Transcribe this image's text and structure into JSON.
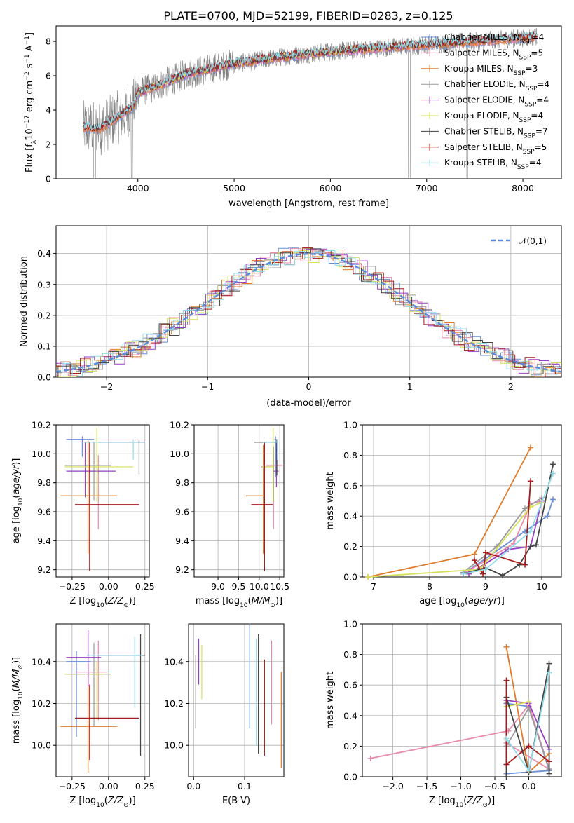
{
  "title": "PLATE=0700, MJD=52199, FIBERID=0283, z=0.125",
  "colors": {
    "Chabrier MILES": "#6b8fd6",
    "Salpeter MILES": "#e88aa8",
    "Kroupa MILES": "#e07b2a",
    "Chabrier ELODIE": "#9a9a9a",
    "Salpeter ELODIE": "#9a3fc5",
    "Kroupa ELODIE": "#d5e05a",
    "Chabrier STELIB": "#444444",
    "Salpeter STELIB": "#a61b1b",
    "Kroupa STELIB": "#8fdbe8"
  },
  "chart_data": [
    {
      "id": "spectrum",
      "type": "line",
      "xlabel": "wavelength [Angstrom, rest frame]",
      "ylabel": "Flux [f_λ 10^-17 erg cm^-2 s^-1 A^-1]",
      "xlim": [
        3150,
        8400
      ],
      "ylim": [
        0,
        8.9
      ],
      "xticks": [
        4000,
        5000,
        6000,
        7000,
        8000
      ],
      "yticks": [
        0,
        2,
        4,
        6,
        8
      ],
      "legend_position": "upper right",
      "legend": [
        "Chabrier MILES, N_SSP=4",
        "Salpeter MILES, N_SSP=5",
        "Kroupa MILES, N_SSP=3",
        "Chabrier ELODIE, N_SSP=4",
        "Salpeter ELODIE, N_SSP=4",
        "Kroupa ELODIE, N_SSP=4",
        "Chabrier STELIB, N_SSP=7",
        "Salpeter STELIB, N_SSP=5",
        "Kroupa STELIB, N_SSP=4"
      ],
      "continuum_x": [
        3430,
        3600,
        3800,
        3950,
        4000,
        4200,
        4500,
        5000,
        5500,
        6000,
        6500,
        7000,
        7500,
        8000,
        8150
      ],
      "continuum_y": [
        3.0,
        2.9,
        3.6,
        4.2,
        5.0,
        5.4,
        6.1,
        6.7,
        7.1,
        7.4,
        7.6,
        7.8,
        8.0,
        8.2,
        8.3
      ]
    },
    {
      "id": "residuals",
      "type": "line",
      "xlabel": "(data-model)/error",
      "ylabel": "Normed distribution",
      "xlim": [
        -2.5,
        2.5
      ],
      "ylim": [
        0,
        0.49
      ],
      "xticks": [
        -2,
        -1,
        0,
        1,
        2
      ],
      "yticks": [
        0.0,
        0.1,
        0.2,
        0.3,
        0.4
      ],
      "legend": "𝒩(0,1)",
      "legend_position": "upper right"
    },
    {
      "id": "age_vs_Z",
      "type": "scatter",
      "xlabel": "Z [log10(Z/Z☉)]",
      "ylabel": "age [log10(age/yr)]",
      "xlim": [
        -0.36,
        0.28
      ],
      "ylim": [
        9.15,
        10.2
      ],
      "xticks": [
        -0.25,
        0.0,
        0.25
      ],
      "yticks": [
        9.2,
        9.4,
        9.6,
        9.8,
        10.0,
        10.2
      ],
      "points": [
        {
          "model": "Chabrier MILES",
          "x": -0.18,
          "xerr": [
            0.11,
            0.08
          ],
          "y": 10.1,
          "yerr": [
            0.12,
            0.02
          ]
        },
        {
          "model": "Salpeter MILES",
          "x": -0.07,
          "xerr": [
            0.15,
            0.07
          ],
          "y": 9.92,
          "yerr": [
            0.44,
            0.07
          ]
        },
        {
          "model": "Kroupa MILES",
          "x": -0.14,
          "xerr": [
            0.19,
            0.2
          ],
          "y": 9.71,
          "yerr": [
            0.4,
            0.38
          ]
        },
        {
          "model": "Chabrier ELODIE",
          "x": -0.1,
          "xerr": [
            0.2,
            0.12
          ],
          "y": 9.92,
          "yerr": [
            0.24,
            0.16
          ]
        },
        {
          "model": "Salpeter ELODIE",
          "x": -0.16,
          "xerr": [
            0.13,
            0.21
          ],
          "y": 9.88,
          "yerr": [
            0.18,
            0.2
          ]
        },
        {
          "model": "Kroupa ELODIE",
          "x": -0.08,
          "xerr": [
            0.22,
            0.25
          ],
          "y": 9.91,
          "yerr": [
            0.24,
            0.27
          ]
        },
        {
          "model": "Chabrier STELIB",
          "x": 0.21,
          "xerr": [
            0.28,
            0.04
          ],
          "y": 10.08,
          "yerr": [
            0.22,
            0.02
          ]
        },
        {
          "model": "Salpeter STELIB",
          "x": -0.13,
          "xerr": [
            0.1,
            0.34
          ],
          "y": 9.65,
          "yerr": [
            0.46,
            0.43
          ]
        },
        {
          "model": "Kroupa STELIB",
          "x": 0.17,
          "xerr": [
            0.34,
            0.08
          ],
          "y": 10.08,
          "yerr": [
            0.12,
            0.02
          ]
        }
      ]
    },
    {
      "id": "age_vs_mass",
      "type": "scatter",
      "xlabel": "mass [log10(M/M☉)]",
      "ylabel": "",
      "xlim": [
        8.42,
        10.6
      ],
      "ylim": [
        9.15,
        10.2
      ],
      "xticks": [
        9.0,
        9.5,
        10.0,
        10.5
      ],
      "yticks": [
        9.2,
        9.4,
        9.6,
        9.8,
        10.0,
        10.2
      ],
      "points": [
        {
          "model": "Chabrier MILES",
          "x": 10.4,
          "xerr": [
            0.03,
            0.02
          ],
          "y": 10.1,
          "yerr": [
            0.26,
            0.02
          ]
        },
        {
          "model": "Salpeter MILES",
          "x": 10.35,
          "xerr": [
            0.18,
            0.22
          ],
          "y": 9.92,
          "yerr": [
            0.44,
            0.07
          ]
        },
        {
          "model": "Kroupa MILES",
          "x": 10.1,
          "xerr": [
            0.42,
            0.0
          ],
          "y": 9.71,
          "yerr": [
            0.4,
            0.35
          ]
        },
        {
          "model": "Chabrier ELODIE",
          "x": 10.35,
          "xerr": [
            0.3,
            0.0
          ],
          "y": 9.91,
          "yerr": [
            0.24,
            0.14
          ]
        },
        {
          "model": "Salpeter ELODIE",
          "x": 10.42,
          "xerr": [
            0.07,
            0.05
          ],
          "y": 9.88,
          "yerr": [
            0.11,
            0.2
          ]
        },
        {
          "model": "Kroupa ELODIE",
          "x": 10.34,
          "xerr": [
            0.25,
            0.0
          ],
          "y": 9.91,
          "yerr": [
            0.24,
            0.27
          ]
        },
        {
          "model": "Chabrier STELIB",
          "x": 10.43,
          "xerr": [
            0.55,
            0.0
          ],
          "y": 10.08,
          "yerr": [
            0.23,
            0.02
          ]
        },
        {
          "model": "Salpeter STELIB",
          "x": 10.13,
          "xerr": [
            0.32,
            0.2
          ],
          "y": 9.65,
          "yerr": [
            0.46,
            0.43
          ]
        },
        {
          "model": "Kroupa STELIB",
          "x": 10.44,
          "xerr": [
            0.34,
            0.03
          ],
          "y": 10.08,
          "yerr": [
            0.12,
            0.02
          ]
        }
      ]
    },
    {
      "id": "weight_vs_age",
      "type": "line",
      "xlabel": "age [log10(age/yr)]",
      "ylabel": "mass weight",
      "xlim": [
        6.8,
        10.35
      ],
      "ylim": [
        0,
        1.0
      ],
      "xticks": [
        7,
        8,
        9,
        10
      ],
      "yticks": [
        0.0,
        0.2,
        0.4,
        0.6,
        0.8,
        1.0
      ],
      "series": [
        {
          "model": "Chabrier MILES",
          "x": [
            8.6,
            9.7,
            10.1,
            10.2
          ],
          "y": [
            0.02,
            0.3,
            0.4,
            0.51
          ]
        },
        {
          "model": "Salpeter MILES",
          "x": [
            8.6,
            9.5,
            9.8,
            10.0
          ],
          "y": [
            0.02,
            0.22,
            0.48,
            0.5
          ]
        },
        {
          "model": "Kroupa MILES",
          "x": [
            6.9,
            8.8,
            9.8
          ],
          "y": [
            0.0,
            0.15,
            0.85
          ]
        },
        {
          "model": "Chabrier ELODIE",
          "x": [
            8.6,
            9.2,
            9.7,
            10.0
          ],
          "y": [
            0.03,
            0.2,
            0.45,
            0.52
          ]
        },
        {
          "model": "Salpeter ELODIE",
          "x": [
            8.7,
            9.4,
            9.8,
            10.0
          ],
          "y": [
            0.02,
            0.18,
            0.2,
            0.5
          ]
        },
        {
          "model": "Kroupa ELODIE",
          "x": [
            6.9,
            8.9,
            9.8,
            10.0
          ],
          "y": [
            0.0,
            0.05,
            0.46,
            0.49
          ]
        },
        {
          "model": "Chabrier STELIB",
          "x": [
            8.6,
            9.0,
            9.3,
            9.6,
            9.8,
            9.9,
            10.2
          ],
          "y": [
            0.02,
            0.06,
            0.01,
            0.08,
            0.2,
            0.21,
            0.74
          ]
        },
        {
          "model": "Salpeter STELIB",
          "x": [
            8.8,
            8.95,
            9.0,
            9.7,
            9.8
          ],
          "y": [
            0.11,
            0.02,
            0.16,
            0.08,
            0.63
          ]
        },
        {
          "model": "Kroupa STELIB",
          "x": [
            8.6,
            9.0,
            9.8,
            10.2
          ],
          "y": [
            0.02,
            0.05,
            0.3,
            0.68
          ]
        }
      ]
    },
    {
      "id": "mass_vs_Z",
      "type": "scatter",
      "xlabel": "Z [log10(Z/Z☉)]",
      "ylabel": "mass [log10(M/M☉)]",
      "xlim": [
        -0.36,
        0.28
      ],
      "ylim": [
        9.85,
        10.58
      ],
      "xticks": [
        -0.25,
        0.0,
        0.25
      ],
      "yticks": [
        10.0,
        10.2,
        10.4
      ],
      "points": [
        {
          "model": "Chabrier MILES",
          "x": -0.22,
          "xerr": [
            0.07,
            0.1
          ],
          "y": 10.4,
          "yerr": [
            0.36,
            0.05
          ]
        },
        {
          "model": "Salpeter MILES",
          "x": -0.07,
          "xerr": [
            0.15,
            0.06
          ],
          "y": 10.35,
          "yerr": [
            0.23,
            0.15
          ]
        },
        {
          "model": "Kroupa MILES",
          "x": -0.14,
          "xerr": [
            0.19,
            0.2
          ],
          "y": 10.09,
          "yerr": [
            0.22,
            0.3
          ]
        },
        {
          "model": "Chabrier ELODIE",
          "x": -0.1,
          "xerr": [
            0.2,
            0.12
          ],
          "y": 10.34,
          "yerr": [
            0.25,
            0.15
          ]
        },
        {
          "model": "Salpeter ELODIE",
          "x": -0.14,
          "xerr": [
            0.15,
            0.09
          ],
          "y": 10.42,
          "yerr": [
            0.14,
            0.13
          ]
        },
        {
          "model": "Kroupa ELODIE",
          "x": -0.08,
          "xerr": [
            0.22,
            0.05
          ],
          "y": 10.34,
          "yerr": [
            0.22,
            0.06
          ]
        },
        {
          "model": "Chabrier STELIB",
          "x": 0.22,
          "xerr": [
            0.3,
            0.03
          ],
          "y": 10.43,
          "yerr": [
            0.48,
            0.1
          ]
        },
        {
          "model": "Salpeter STELIB",
          "x": -0.13,
          "xerr": [
            0.1,
            0.34
          ],
          "y": 10.13,
          "yerr": [
            0.2,
            0.16
          ]
        },
        {
          "model": "Kroupa STELIB",
          "x": 0.18,
          "xerr": [
            0.33,
            0.05
          ],
          "y": 10.43,
          "yerr": [
            0.25,
            0.09
          ]
        }
      ]
    },
    {
      "id": "mass_vs_ebv",
      "type": "scatter",
      "xlabel": "E(B-V)",
      "ylabel": "",
      "xlim": [
        -0.01,
        0.177
      ],
      "ylim": [
        9.85,
        10.58
      ],
      "xticks": [
        0.0,
        0.1
      ],
      "yticks": [
        10.0,
        10.2,
        10.4
      ],
      "points": [
        {
          "model": "Chabrier MILES",
          "x": 0.11,
          "yerr": [
            0.32,
            0.22
          ],
          "y": 10.4
        },
        {
          "model": "Salpeter MILES",
          "x": 0.153,
          "yerr": [
            0.25,
            0.15
          ],
          "y": 10.35
        },
        {
          "model": "Kroupa MILES",
          "x": 0.172,
          "yerr": [
            0.2,
            0.26
          ],
          "y": 10.09
        },
        {
          "model": "Chabrier ELODIE",
          "x": 0.004,
          "yerr": [
            0.26,
            0.09
          ],
          "y": 10.34
        },
        {
          "model": "Salpeter ELODIE",
          "x": 0.01,
          "yerr": [
            0.13,
            0.09
          ],
          "y": 10.42
        },
        {
          "model": "Kroupa ELODIE",
          "x": 0.016,
          "yerr": [
            0.12,
            0.14
          ],
          "y": 10.34
        },
        {
          "model": "Chabrier STELIB",
          "x": 0.127,
          "yerr": [
            0.47,
            0.1
          ],
          "y": 10.43
        },
        {
          "model": "Salpeter STELIB",
          "x": 0.139,
          "yerr": [
            0.18,
            0.28
          ],
          "y": 10.13
        },
        {
          "model": "Kroupa STELIB",
          "x": 0.123,
          "yerr": [
            0.45,
            0.06
          ],
          "y": 10.45
        }
      ]
    },
    {
      "id": "weight_vs_Z",
      "type": "line",
      "xlabel": "Z [log10(Z/Z☉)]",
      "ylabel": "mass weight",
      "xlim": [
        -2.45,
        0.48
      ],
      "ylim": [
        0,
        1.0
      ],
      "xticks": [
        -2.0,
        -1.5,
        -1.0,
        -0.5,
        0.0
      ],
      "yticks": [
        0.0,
        0.2,
        0.4,
        0.6,
        0.8,
        1.0
      ],
      "series": [
        {
          "model": "Chabrier MILES",
          "x": [
            -0.33,
            0.0,
            0.3,
            -0.33
          ],
          "y": [
            0.48,
            0.46,
            0.04,
            0.02
          ]
        },
        {
          "model": "Salpeter MILES",
          "x": [
            -2.33,
            -0.3,
            0.0,
            0.3,
            -0.33
          ],
          "y": [
            0.12,
            0.3,
            0.47,
            0.05,
            0.22
          ]
        },
        {
          "model": "Kroupa MILES",
          "x": [
            -0.33,
            0.0,
            0.3
          ],
          "y": [
            0.85,
            0.03,
            0.15
          ]
        },
        {
          "model": "Chabrier ELODIE",
          "x": [
            -0.33,
            0.0,
            0.3
          ],
          "y": [
            0.2,
            0.45,
            0.05
          ]
        },
        {
          "model": "Salpeter ELODIE",
          "x": [
            -0.33,
            0.0,
            0.3
          ],
          "y": [
            0.5,
            0.48,
            0.18
          ]
        },
        {
          "model": "Kroupa ELODIE",
          "x": [
            -0.33,
            0.0
          ],
          "y": [
            0.46,
            0.49
          ]
        },
        {
          "model": "Chabrier STELIB",
          "x": [
            -0.33,
            -0.33,
            0.0,
            0.3,
            0.3
          ],
          "y": [
            0.0,
            0.52,
            0.03,
            0.74,
            0.02
          ]
        },
        {
          "model": "Salpeter STELIB",
          "x": [
            -0.33,
            -0.33,
            0.0,
            0.3
          ],
          "y": [
            0.63,
            0.08,
            0.2,
            0.1
          ]
        },
        {
          "model": "Kroupa STELIB",
          "x": [
            -0.33,
            0.0,
            0.3
          ],
          "y": [
            0.25,
            0.04,
            0.68
          ]
        }
      ]
    }
  ]
}
